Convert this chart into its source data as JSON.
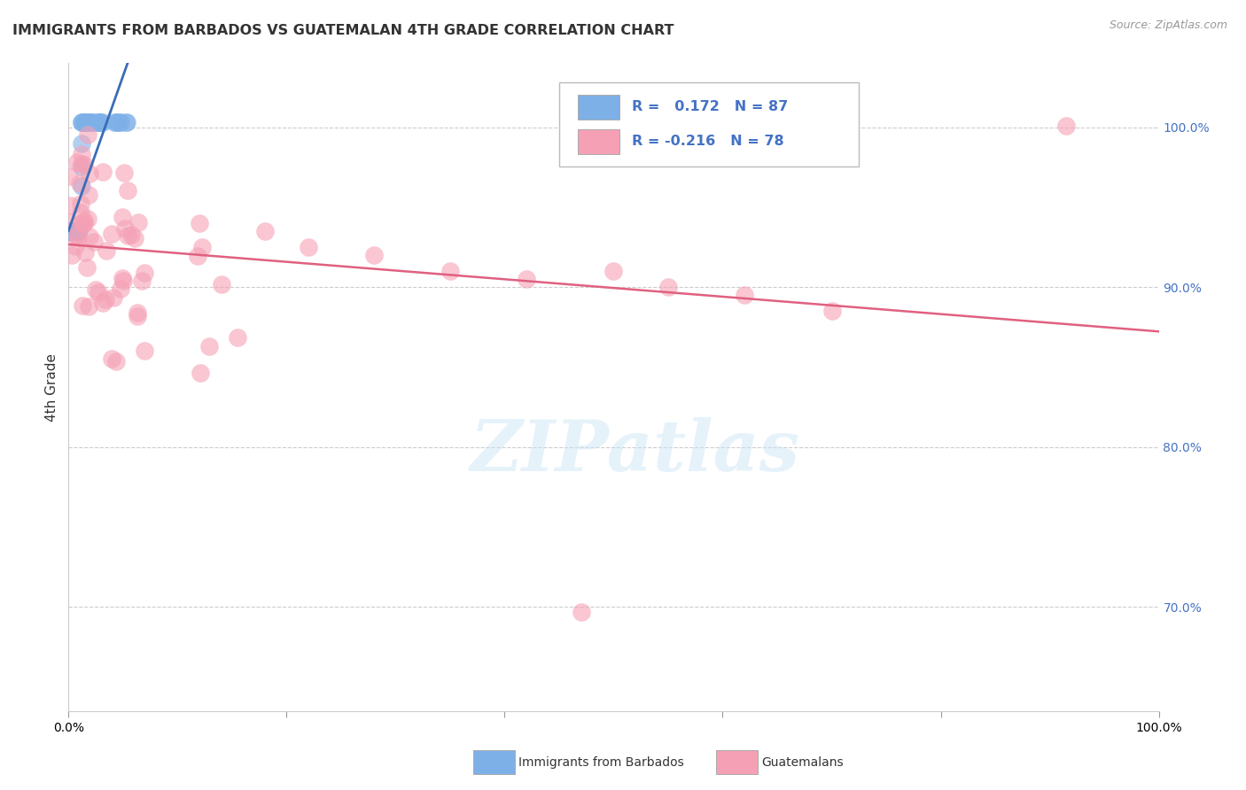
{
  "title": "IMMIGRANTS FROM BARBADOS VS GUATEMALAN 4TH GRADE CORRELATION CHART",
  "source": "Source: ZipAtlas.com",
  "ylabel": "4th Grade",
  "xlim": [
    0.0,
    1.0
  ],
  "ylim": [
    0.635,
    1.04
  ],
  "right_yticks": [
    0.7,
    0.8,
    0.9,
    1.0
  ],
  "r_barbados": 0.172,
  "n_barbados": 87,
  "r_guatemalan": -0.216,
  "n_guatemalan": 78,
  "color_barbados": "#7EB0E8",
  "color_guatemalan": "#F5A0B5",
  "line_color_barbados": "#3A6DB5",
  "line_color_guatemalan": "#E06080",
  "watermark": "ZIPatlas",
  "background_color": "#ffffff",
  "grid_color": "#cccccc",
  "right_axis_color": "#4472C4"
}
